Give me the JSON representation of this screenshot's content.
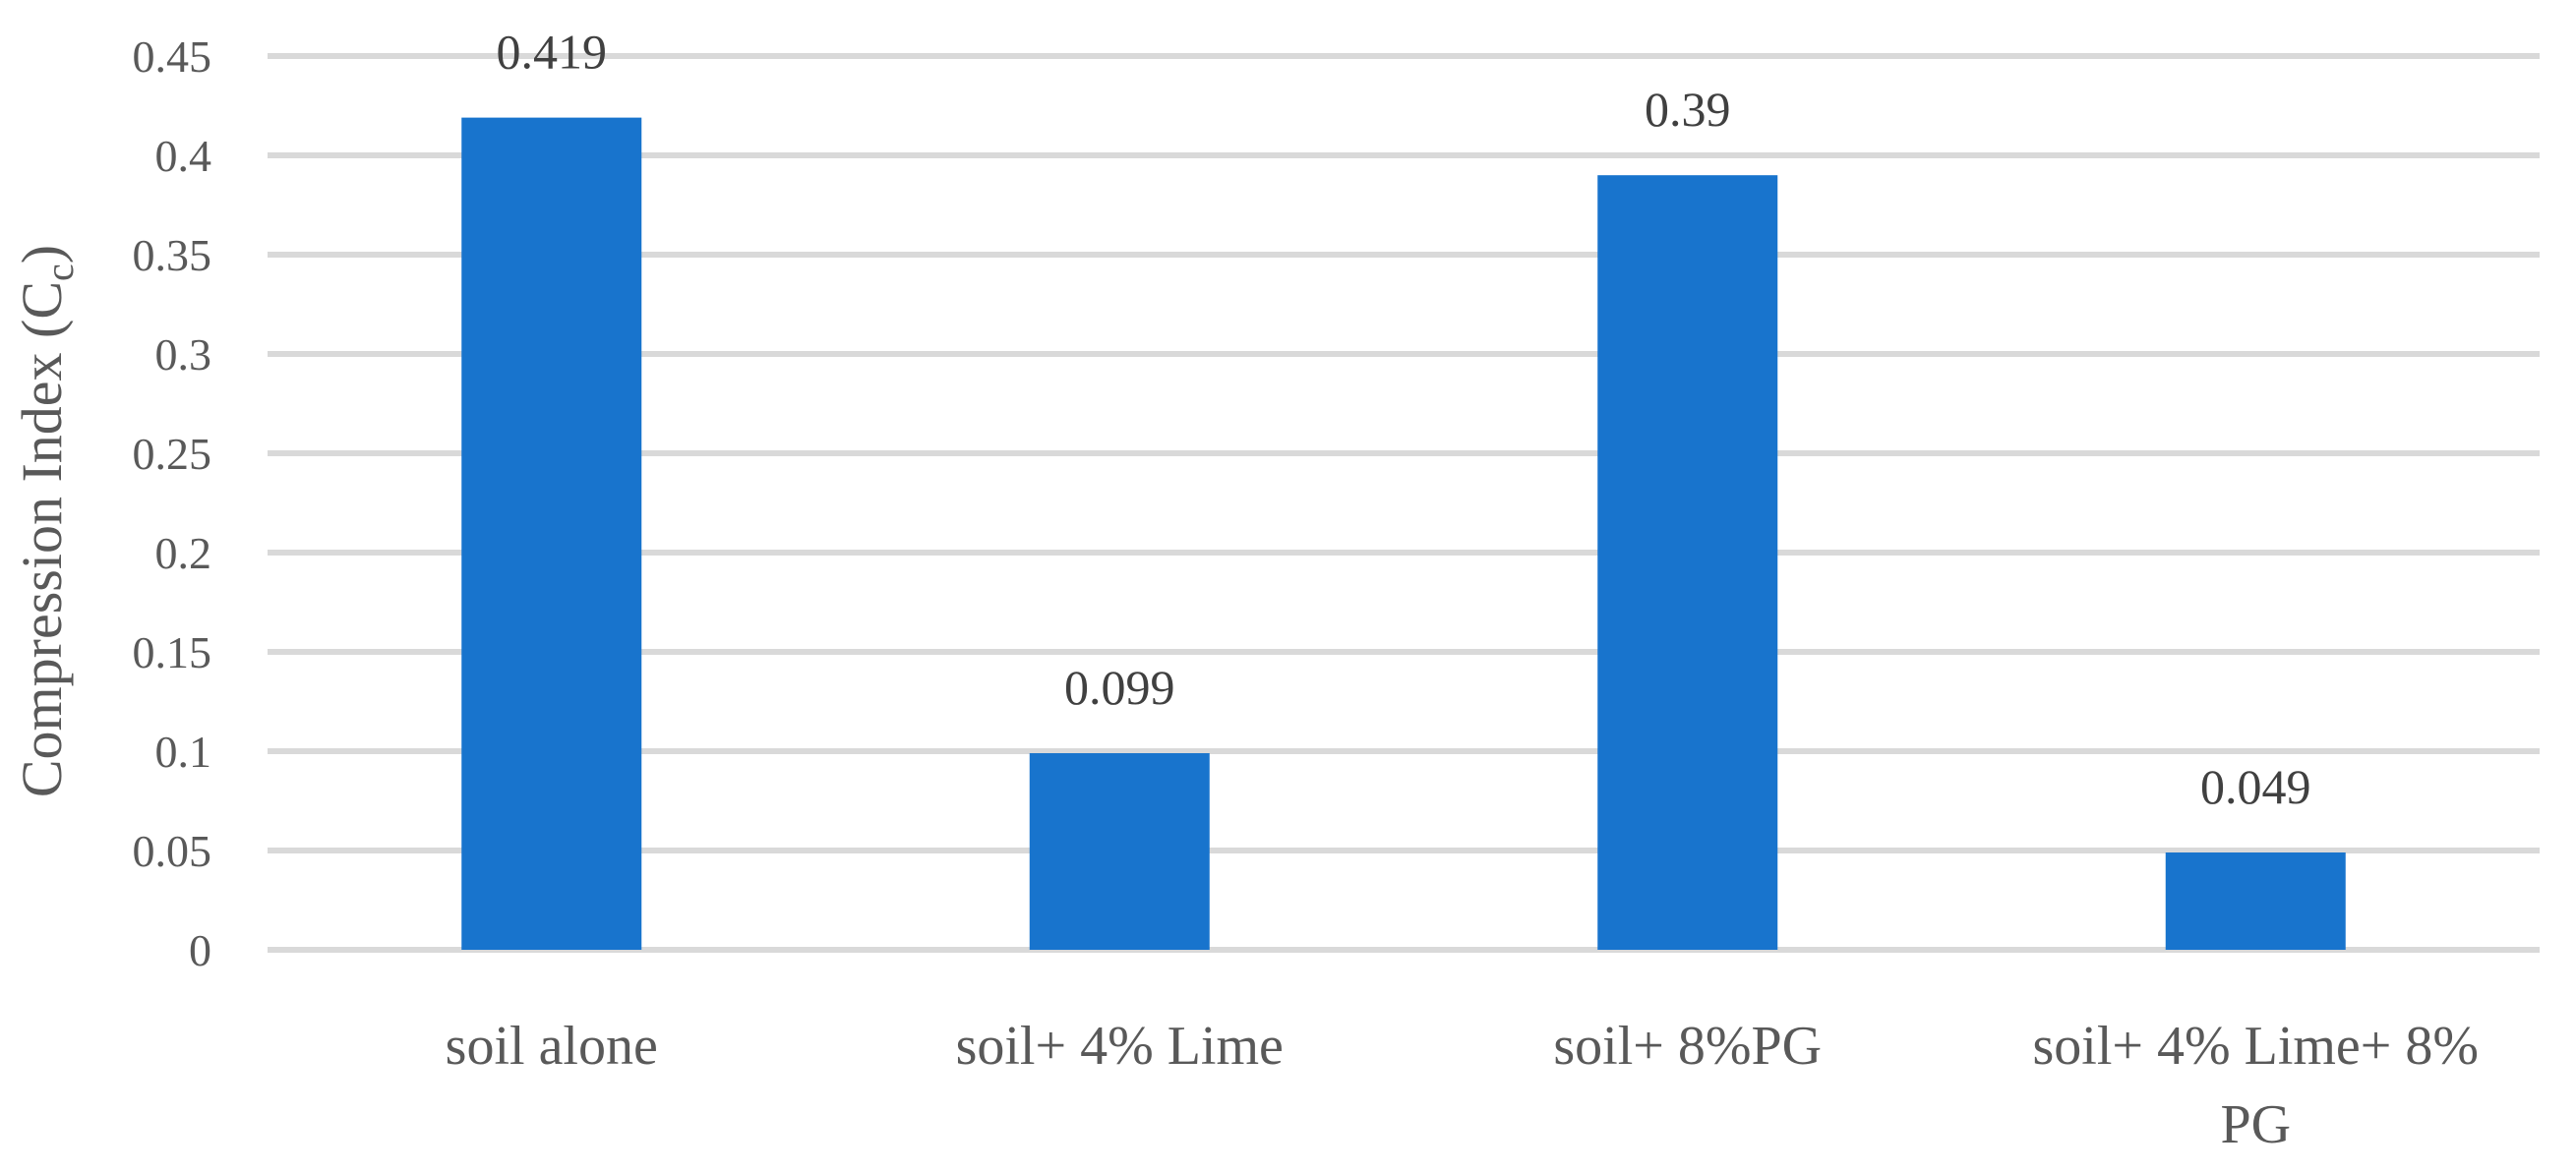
{
  "chart_data": {
    "type": "bar",
    "title": "",
    "xlabel": "",
    "ylabel": "Compression Index (C",
    "ylabel_subscript": "c",
    "ylabel_suffix": ")",
    "categories": [
      "soil alone",
      "soil+ 4% Lime",
      "soil+ 8%PG",
      "soil+ 4% Lime+ 8% PG"
    ],
    "category_lines": [
      [
        "soil alone"
      ],
      [
        "soil+ 4% Lime"
      ],
      [
        "soil+ 8%PG"
      ],
      [
        "soil+ 4% Lime+ 8%",
        "PG"
      ]
    ],
    "values": [
      0.419,
      0.099,
      0.39,
      0.049
    ],
    "data_labels": [
      "0.419",
      "0.099",
      "0.39",
      "0.049"
    ],
    "yticks": [
      0,
      0.05,
      0.1,
      0.15,
      0.2,
      0.25,
      0.3,
      0.35,
      0.4,
      0.45
    ],
    "ytick_labels": [
      "0",
      "0.05",
      "0.1",
      "0.15",
      "0.2",
      "0.25",
      "0.3",
      "0.35",
      "0.4",
      "0.45"
    ],
    "ylim": [
      0,
      0.45
    ],
    "grid": true,
    "legend": "none",
    "bar_color": "#1874CD",
    "grid_color": "#D9D9D9"
  }
}
